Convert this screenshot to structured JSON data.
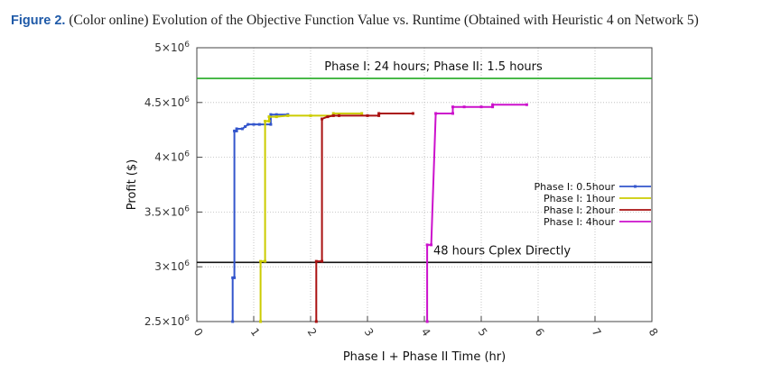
{
  "caption": {
    "label": "Figure 2.",
    "text": "(Color online) Evolution of the Objective Function Value vs. Runtime (Obtained with Heuristic 4 on Network 5)"
  },
  "chart_data": {
    "type": "line",
    "xlabel": "Phase I + Phase II Time  (hr)",
    "ylabel": "Profit ($)",
    "xlim": [
      0,
      8
    ],
    "ylim": [
      2500000,
      5000000
    ],
    "x_ticks": [
      "0",
      "1",
      "2",
      "3",
      "4",
      "5",
      "6",
      "7",
      "8"
    ],
    "y_ticks": [
      {
        "value": 2500000,
        "mant": "2.5×10",
        "exp": "6"
      },
      {
        "value": 3000000,
        "mant": "3×10",
        "exp": "6"
      },
      {
        "value": 3500000,
        "mant": "3.5×10",
        "exp": "6"
      },
      {
        "value": 4000000,
        "mant": "4×10",
        "exp": "6"
      },
      {
        "value": 4500000,
        "mant": "4.5×10",
        "exp": "6"
      },
      {
        "value": 5000000,
        "mant": "5×10",
        "exp": "6"
      }
    ],
    "grid": true,
    "legend_position": "right",
    "series": [
      {
        "name": "Phase I: 0.5hour",
        "color": "#3355cc",
        "x": [
          0.63,
          0.63,
          0.66,
          0.66,
          0.7,
          0.7,
          0.8,
          0.85,
          0.9,
          1.0,
          1.1,
          1.3,
          1.3,
          1.4,
          1.6
        ],
        "y": [
          2500000,
          2900000,
          2900000,
          4240000,
          4240000,
          4260000,
          4260000,
          4280000,
          4300000,
          4300000,
          4300000,
          4300000,
          4390000,
          4390000,
          4390000
        ]
      },
      {
        "name": "Phase I: 1hour",
        "color": "#cccc00",
        "x": [
          1.12,
          1.12,
          1.2,
          1.2,
          1.27,
          1.27,
          1.4,
          1.6,
          2.0,
          2.4,
          2.4,
          2.9
        ],
        "y": [
          2500000,
          3050000,
          3050000,
          4330000,
          4330000,
          4370000,
          4370000,
          4380000,
          4380000,
          4380000,
          4400000,
          4400000
        ]
      },
      {
        "name": "Phase I: 2hour",
        "color": "#aa1111",
        "x": [
          2.1,
          2.1,
          2.2,
          2.2,
          2.3,
          2.4,
          2.5,
          3.0,
          3.2,
          3.2,
          3.8
        ],
        "y": [
          2500000,
          3050000,
          3050000,
          4350000,
          4370000,
          4380000,
          4380000,
          4380000,
          4380000,
          4400000,
          4400000
        ]
      },
      {
        "name": "Phase I: 4hour",
        "color": "#cc11cc",
        "x": [
          4.05,
          4.05,
          4.12,
          4.2,
          4.5,
          4.5,
          4.7,
          5.0,
          5.2,
          5.2,
          5.8
        ],
        "y": [
          2500000,
          3200000,
          3200000,
          4400000,
          4400000,
          4460000,
          4460000,
          4460000,
          4460000,
          4480000,
          4480000
        ]
      }
    ],
    "reference_lines": [
      {
        "label": "Phase I: 24 hours; Phase II: 1.5 hours",
        "y": 4720000,
        "color": "#22aa22"
      },
      {
        "label": "48 hours Cplex Directly",
        "y": 3040000,
        "color": "#111111"
      }
    ]
  }
}
